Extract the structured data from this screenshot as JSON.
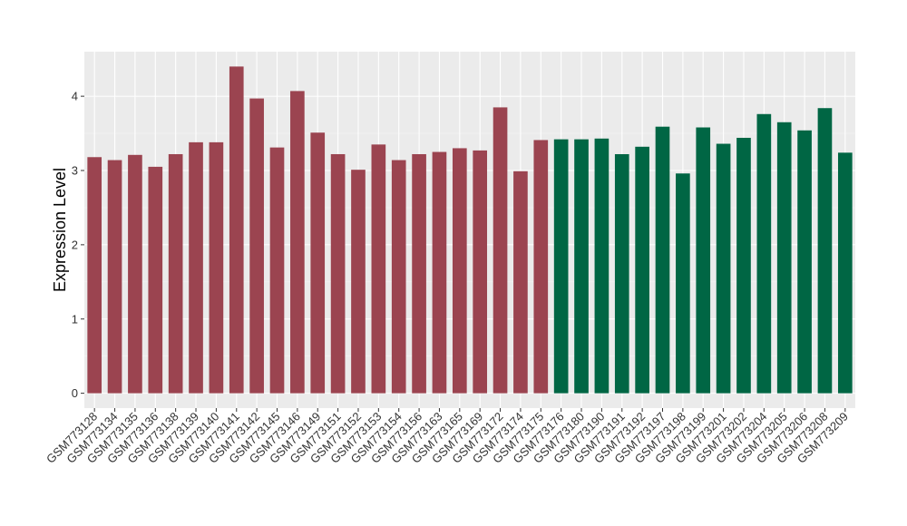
{
  "chart_data": {
    "type": "bar",
    "xlabel": "",
    "ylabel": "Expression Level",
    "ylim": [
      -0.2,
      4.6
    ],
    "yticks": [
      0,
      1,
      2,
      3,
      4
    ],
    "grid": true,
    "background": "#ebebeb",
    "categories": [
      "GSM773128",
      "GSM773134",
      "GSM773135",
      "GSM773136",
      "GSM773138",
      "GSM773139",
      "GSM773140",
      "GSM773141",
      "GSM773142",
      "GSM773145",
      "GSM773146",
      "GSM773149",
      "GSM773151",
      "GSM773152",
      "GSM773153",
      "GSM773154",
      "GSM773156",
      "GSM773163",
      "GSM773165",
      "GSM773169",
      "GSM773172",
      "GSM773174",
      "GSM773175",
      "GSM773176",
      "GSM773180",
      "GSM773190",
      "GSM773191",
      "GSM773192",
      "GSM773197",
      "GSM773198",
      "GSM773199",
      "GSM773201",
      "GSM773202",
      "GSM773204",
      "GSM773205",
      "GSM773206",
      "GSM773208",
      "GSM773209"
    ],
    "values": [
      3.18,
      3.14,
      3.21,
      3.05,
      3.22,
      3.38,
      3.38,
      4.4,
      3.97,
      3.31,
      4.07,
      3.51,
      3.22,
      3.01,
      3.35,
      3.14,
      3.22,
      3.25,
      3.3,
      3.27,
      3.85,
      2.99,
      3.41,
      3.42,
      3.42,
      3.43,
      3.22,
      3.32,
      3.59,
      2.96,
      3.58,
      3.36,
      3.44,
      3.76,
      3.65,
      3.54,
      3.84,
      3.24
    ],
    "colors": [
      "#9b4450",
      "#9b4450",
      "#9b4450",
      "#9b4450",
      "#9b4450",
      "#9b4450",
      "#9b4450",
      "#9b4450",
      "#9b4450",
      "#9b4450",
      "#9b4450",
      "#9b4450",
      "#9b4450",
      "#9b4450",
      "#9b4450",
      "#9b4450",
      "#9b4450",
      "#9b4450",
      "#9b4450",
      "#9b4450",
      "#9b4450",
      "#9b4450",
      "#9b4450",
      "#006644",
      "#006644",
      "#006644",
      "#006644",
      "#006644",
      "#006644",
      "#006644",
      "#006644",
      "#006644",
      "#006644",
      "#006644",
      "#006644",
      "#006644",
      "#006644",
      "#006644"
    ]
  }
}
